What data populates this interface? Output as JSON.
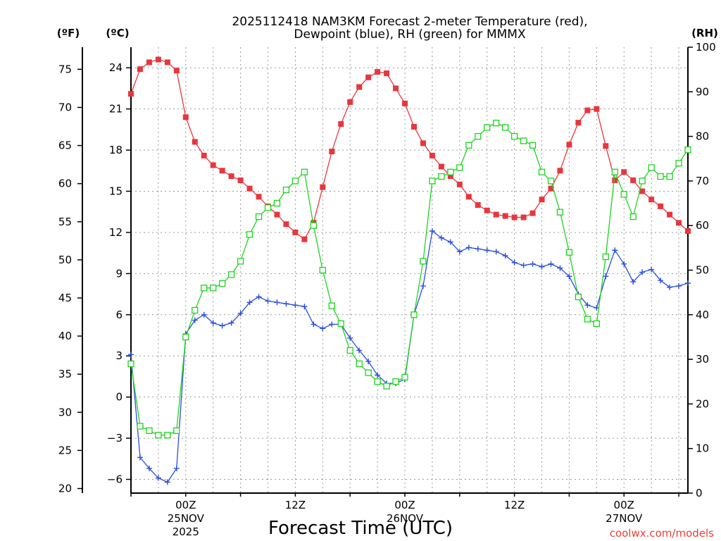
{
  "chart_data": {
    "type": "line",
    "title_line1": "2025112418 NAM3KM Forecast 2-meter Temperature (red),",
    "title_line2": "Dewpoint (blue), RH (green) for MMMX",
    "xlabel": "Forecast Time (UTC)",
    "credit": "coolwx.com/models",
    "units": {
      "fahrenheit": "(ºF)",
      "celsius": "(ºC)",
      "rh": "(RH)"
    },
    "x_range_hours": [
      -6,
      55
    ],
    "celsius_range": [
      -7.0,
      25.5
    ],
    "rh_range": [
      0,
      100
    ],
    "fahrenheit_ticks": [
      "20",
      "25",
      "30",
      "35",
      "40",
      "45",
      "50",
      "55",
      "60",
      "65",
      "70",
      "75"
    ],
    "celsius_ticks": [
      "−6",
      "−3",
      "0",
      "3",
      "6",
      "9",
      "12",
      "15",
      "18",
      "21",
      "24"
    ],
    "rh_ticks": [
      "0",
      "10",
      "20",
      "30",
      "40",
      "50",
      "60",
      "70",
      "80",
      "90",
      "100"
    ],
    "x_ticks": [
      {
        "hour": 0,
        "label": "00Z",
        "date": "25NOV",
        "year": "2025"
      },
      {
        "hour": 12,
        "label": "12Z",
        "date": "",
        "year": ""
      },
      {
        "hour": 24,
        "label": "00Z",
        "date": "26NOV",
        "year": ""
      },
      {
        "hour": 36,
        "label": "12Z",
        "date": "",
        "year": ""
      },
      {
        "hour": 48,
        "label": "00Z",
        "date": "27NOV",
        "year": ""
      }
    ],
    "x_hours": [
      -6,
      -5,
      -4,
      -3,
      -2,
      -1,
      0,
      1,
      2,
      3,
      4,
      5,
      6,
      7,
      8,
      9,
      10,
      11,
      12,
      13,
      14,
      15,
      16,
      17,
      18,
      19,
      20,
      21,
      22,
      23,
      24,
      25,
      26,
      27,
      28,
      29,
      30,
      31,
      32,
      33,
      34,
      35,
      36,
      37,
      38,
      39,
      40,
      41,
      42,
      43,
      44,
      45,
      46,
      47,
      48,
      49,
      50,
      51,
      52,
      53,
      54,
      55
    ],
    "series": [
      {
        "name": "Temperature",
        "color": "#e8363c",
        "marker": "filled-square",
        "values": [
          22.1,
          23.9,
          24.4,
          24.6,
          24.4,
          23.8,
          20.4,
          18.6,
          17.6,
          16.9,
          16.5,
          16.1,
          15.8,
          15.2,
          14.6,
          13.9,
          13.3,
          12.6,
          12.0,
          11.5,
          12.7,
          15.3,
          17.9,
          19.9,
          21.5,
          22.6,
          23.3,
          23.7,
          23.6,
          22.5,
          21.4,
          19.7,
          18.5,
          17.6,
          16.8,
          16.1,
          15.5,
          14.6,
          14.0,
          13.6,
          13.3,
          13.2,
          13.1,
          13.1,
          13.4,
          14.4,
          15.2,
          16.5,
          18.4,
          20.0,
          20.9,
          21.0,
          18.3,
          15.8,
          16.4,
          15.8,
          15.0,
          14.4,
          13.9,
          13.3,
          12.7,
          12.1
        ]
      },
      {
        "name": "Dewpoint",
        "color": "#2a4fe0",
        "marker": "plus",
        "values": [
          3.1,
          -4.4,
          -5.2,
          -5.9,
          -6.2,
          -5.2,
          4.6,
          5.6,
          6.0,
          5.4,
          5.2,
          5.4,
          6.1,
          6.9,
          7.3,
          7.0,
          6.9,
          6.8,
          6.7,
          6.6,
          5.3,
          5.0,
          5.3,
          5.3,
          4.3,
          3.4,
          2.6,
          1.6,
          1.0,
          1.0,
          1.3,
          6.0,
          8.1,
          12.1,
          11.6,
          11.3,
          10.6,
          10.9,
          10.8,
          10.7,
          10.6,
          10.3,
          9.8,
          9.6,
          9.7,
          9.5,
          9.7,
          9.4,
          8.8,
          7.5,
          6.7,
          6.5,
          8.8,
          10.7,
          9.7,
          8.4,
          9.1,
          9.3,
          8.5,
          8.0,
          8.1,
          8.3
        ]
      },
      {
        "name": "RH",
        "color": "#1ed41e",
        "marker": "open-square",
        "values": [
          29,
          15,
          14,
          13,
          13,
          14,
          35,
          41,
          46,
          46,
          47,
          49,
          52,
          58,
          62,
          64,
          65,
          68,
          70,
          72,
          60,
          50,
          42,
          38,
          32,
          29,
          27,
          25,
          24,
          25,
          26,
          40,
          52,
          70,
          71,
          72,
          73,
          78,
          80,
          82,
          83,
          82,
          80,
          79,
          78,
          72,
          70,
          63,
          54,
          44,
          39,
          38,
          53,
          72,
          67,
          62,
          70,
          73,
          71,
          71,
          74,
          77
        ]
      }
    ]
  }
}
